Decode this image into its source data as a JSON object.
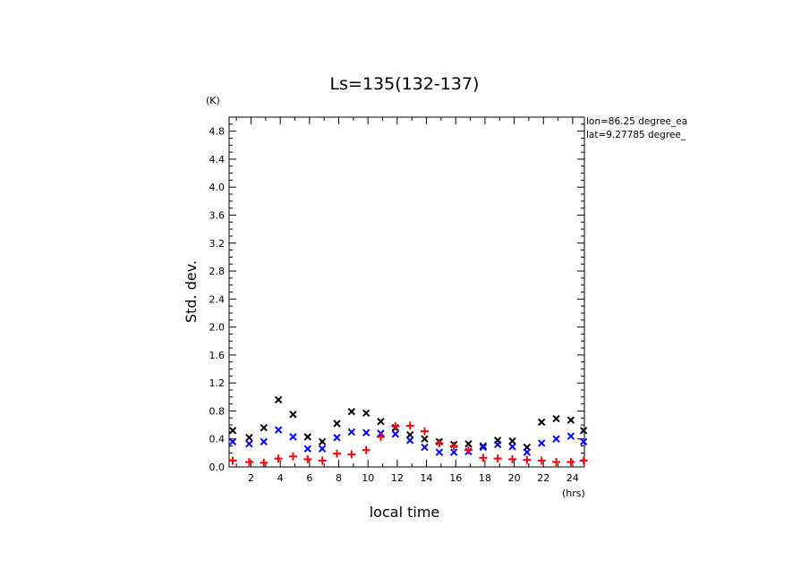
{
  "chart_data": {
    "type": "scatter",
    "title": "Ls=135(132-137)",
    "xlabel": "local time",
    "ylabel": "Std. dev.",
    "x_unit": "(hrs)",
    "y_unit": "(K)",
    "xlim": [
      0.5,
      24.8
    ],
    "ylim": [
      0,
      5.0
    ],
    "xticks": [
      2,
      4,
      6,
      8,
      10,
      12,
      14,
      16,
      18,
      20,
      22,
      24
    ],
    "yticks": [
      0.0,
      0.4,
      0.8,
      1.2,
      1.6,
      2.0,
      2.4,
      2.8,
      3.2,
      3.6,
      4.0,
      4.4,
      4.8
    ],
    "ytick_labels": [
      "0.0",
      "0.4",
      "0.8",
      "1.2",
      "1.6",
      "2.0",
      "2.4",
      "2.8",
      "3.2",
      "3.6",
      "4.0",
      "4.4",
      "4.8"
    ],
    "annotations": [
      "lon=86.25 degree_ea",
      "lat=9.27785 degree_"
    ],
    "x": [
      0.75,
      1.875,
      2.875,
      3.875,
      4.875,
      5.875,
      6.875,
      7.875,
      8.875,
      9.875,
      10.875,
      11.875,
      12.875,
      13.875,
      14.875,
      15.875,
      16.875,
      17.875,
      18.875,
      19.875,
      20.875,
      21.875,
      22.875,
      23.875,
      24.75
    ],
    "series": [
      {
        "color": "#000000",
        "marker": "x",
        "values": [
          0.52,
          0.42,
          0.56,
          0.96,
          0.75,
          0.43,
          0.36,
          0.62,
          0.79,
          0.77,
          0.65,
          0.56,
          0.46,
          0.4,
          0.36,
          0.32,
          0.33,
          0.3,
          0.38,
          0.37,
          0.28,
          0.64,
          0.69,
          0.67,
          0.52
        ]
      },
      {
        "color": "#0000ff",
        "marker": "x",
        "values": [
          0.36,
          0.33,
          0.36,
          0.53,
          0.43,
          0.26,
          0.26,
          0.42,
          0.5,
          0.49,
          0.48,
          0.47,
          0.38,
          0.28,
          0.21,
          0.21,
          0.22,
          0.28,
          0.32,
          0.29,
          0.21,
          0.34,
          0.4,
          0.44,
          0.36
        ]
      },
      {
        "color": "#ff0000",
        "marker": "+",
        "values": [
          0.09,
          0.07,
          0.06,
          0.12,
          0.15,
          0.11,
          0.09,
          0.19,
          0.18,
          0.24,
          0.43,
          0.58,
          0.59,
          0.51,
          0.34,
          0.3,
          0.24,
          0.13,
          0.12,
          0.11,
          0.1,
          0.09,
          0.07,
          0.07,
          0.09
        ]
      }
    ]
  }
}
